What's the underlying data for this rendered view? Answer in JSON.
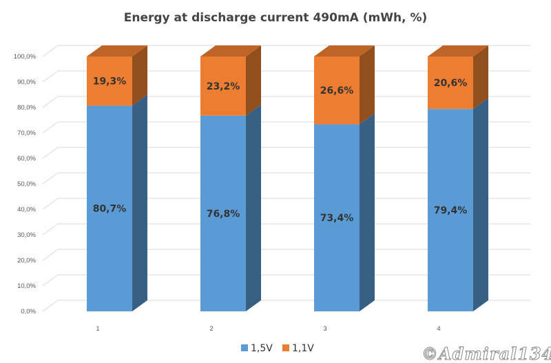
{
  "chart_data": {
    "type": "bar",
    "stacked": true,
    "three_d": true,
    "title": "Energy at discharge current 490mA (mWh, %)",
    "categories": [
      "1",
      "2",
      "3",
      "4"
    ],
    "series": [
      {
        "name": "1,5V",
        "color": "#5b9bd5",
        "values": [
          80.7,
          76.8,
          73.4,
          79.4
        ],
        "labels": [
          "80,7%",
          "76,8%",
          "73,4%",
          "79,4%"
        ]
      },
      {
        "name": "1,1V",
        "color": "#ed7d31",
        "values": [
          19.3,
          23.2,
          26.6,
          20.6
        ],
        "labels": [
          "19,3%",
          "23,2%",
          "26,6%",
          "20,6%"
        ]
      }
    ],
    "yticks": [
      "0,0%",
      "10,0%",
      "20,0%",
      "30,0%",
      "40,0%",
      "50,0%",
      "60,0%",
      "70,0%",
      "80,0%",
      "90,0%",
      "100,0%"
    ],
    "ylim": [
      0,
      100
    ],
    "grid": true,
    "legend_position": "bottom"
  },
  "watermark": "©Admiral134"
}
